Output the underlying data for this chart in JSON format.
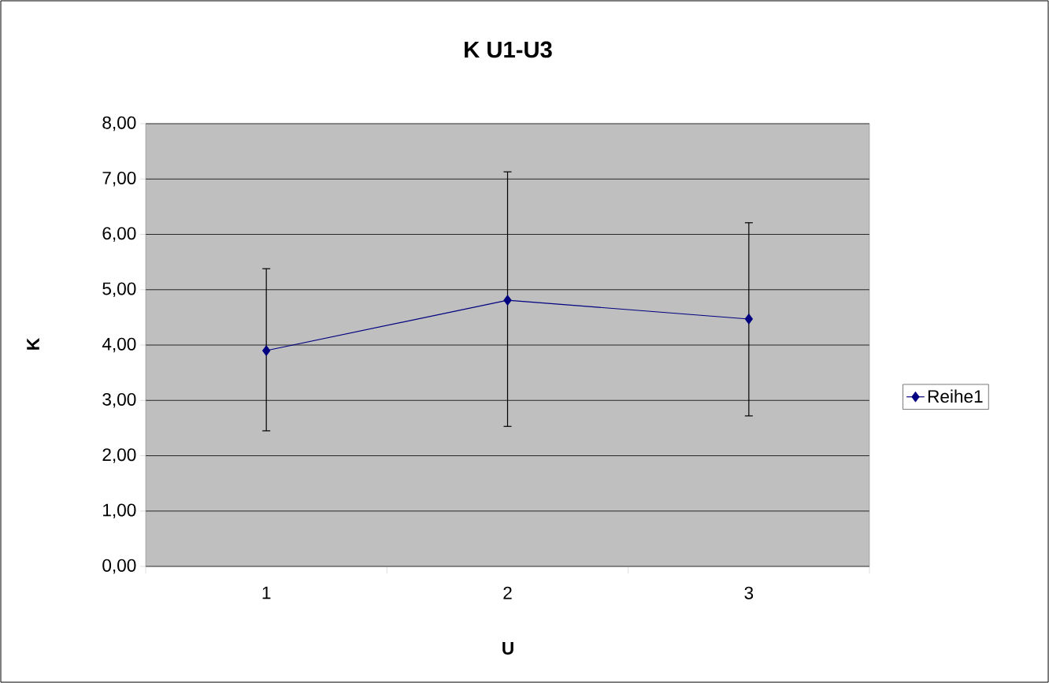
{
  "chart_data": {
    "type": "line",
    "title": "K U1-U3",
    "xlabel": "U",
    "ylabel": "K",
    "categories": [
      "1",
      "2",
      "3"
    ],
    "series": [
      {
        "name": "Reihe1",
        "color": "#000080",
        "values": [
          3.9,
          4.81,
          4.47
        ],
        "errors": [
          [
            2.45,
            5.38
          ],
          [
            2.53,
            7.13
          ],
          [
            2.72,
            6.21
          ]
        ]
      }
    ],
    "ylim": [
      0,
      8
    ],
    "yticks": [
      {
        "value": 0,
        "label": "0,00"
      },
      {
        "value": 1,
        "label": "1,00"
      },
      {
        "value": 2,
        "label": "2,00"
      },
      {
        "value": 3,
        "label": "3,00"
      },
      {
        "value": 4,
        "label": "4,00"
      },
      {
        "value": 5,
        "label": "5,00"
      },
      {
        "value": 6,
        "label": "6,00"
      },
      {
        "value": 7,
        "label": "7,00"
      },
      {
        "value": 8,
        "label": "8,00"
      }
    ],
    "grid": "y",
    "legend": "right",
    "marker": "diamond",
    "line_style": "solid"
  }
}
